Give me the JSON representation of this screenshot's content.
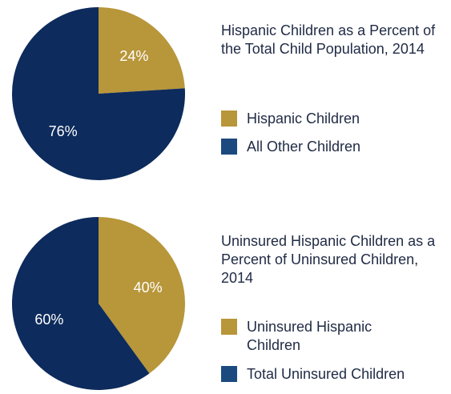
{
  "chart_data": [
    {
      "type": "pie",
      "title": "Hispanic Children as a Percent of the Total Child Population, 2014",
      "slices": [
        {
          "name": "Hispanic Children",
          "value": 24,
          "label": "24%",
          "color": "#b8963a"
        },
        {
          "name": "All Other Children",
          "value": 76,
          "label": "76%",
          "color": "#0d2b5c"
        }
      ],
      "legend": "right"
    },
    {
      "type": "pie",
      "title": "Uninsured Hispanic Children as a Percent of Uninsured Children, 2014",
      "slices": [
        {
          "name": "Uninsured Hispanic Children",
          "value": 40,
          "label": "40%",
          "color": "#b8963a"
        },
        {
          "name": "Total Uninsured Children",
          "value": 60,
          "label": "60%",
          "color": "#0d2b5c"
        }
      ],
      "legend": "right"
    }
  ],
  "colors": {
    "gold": "#b8963a",
    "navy": "#0d2b5c",
    "legend_navy": "#1c4a7e"
  }
}
